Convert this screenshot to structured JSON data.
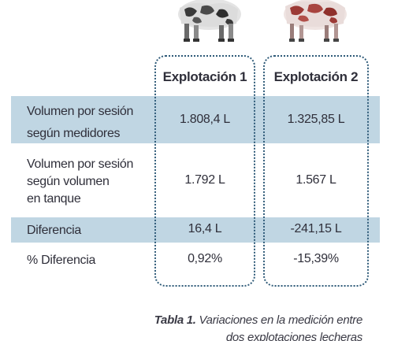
{
  "table": {
    "headers": [
      "Explotación 1",
      "Explotación 2"
    ],
    "rows": [
      {
        "label": "Volumen por sesión según medidores",
        "label_lines": [
          "Volumen por sesión",
          "según medidores"
        ],
        "values": [
          "1.808,4 L",
          "1.325,85 L"
        ]
      },
      {
        "label": "Volumen por sesión según volumen en tanque",
        "label_lines": [
          "Volumen por sesión",
          "según volumen",
          "en tanque"
        ],
        "values": [
          "1.792 L",
          "1.567 L"
        ]
      },
      {
        "label": "Diferencia",
        "label_lines": [
          "Diferencia"
        ],
        "values": [
          "16,4 L",
          "-241,15 L"
        ]
      },
      {
        "label": "% Diferencia",
        "label_lines": [
          "% Diferencia"
        ],
        "values": [
          "0,92%",
          "-15,39%"
        ]
      }
    ]
  },
  "caption": {
    "prefix": "Tabla 1.",
    "line1": "Variaciones en la medición entre",
    "line2": "dos explotaciones lecheras"
  },
  "colors": {
    "band": "#c0d6e3",
    "frame": "#2e5a78",
    "text": "#2f2f3a"
  }
}
